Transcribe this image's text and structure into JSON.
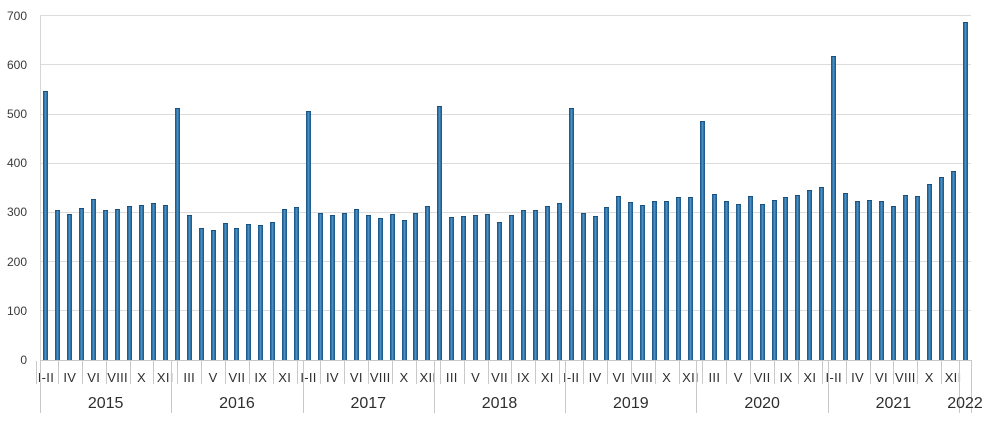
{
  "chart_data": {
    "type": "bar",
    "title": "",
    "xlabel": "",
    "ylabel": "",
    "ylim": [
      0,
      700
    ],
    "ytick_interval": 100,
    "yticks": [
      "0",
      "100",
      "200",
      "300",
      "400",
      "500",
      "600",
      "700"
    ],
    "grid": true,
    "legend": false,
    "bar_color": "#2e74a8",
    "months": [
      "I-II",
      "III",
      "IV",
      "V",
      "VI",
      "VII",
      "VIII",
      "IX",
      "X",
      "XI",
      "XII"
    ],
    "series": [
      {
        "year": "2015",
        "values": [
          547,
          304,
          297,
          308,
          327,
          304,
          306,
          312,
          316,
          320,
          316
        ]
      },
      {
        "year": "2016",
        "values": [
          513,
          294,
          269,
          264,
          278,
          269,
          277,
          275,
          281,
          306,
          310
        ]
      },
      {
        "year": "2017",
        "values": [
          506,
          299,
          294,
          298,
          306,
          294,
          289,
          297,
          284,
          299,
          313
        ]
      },
      {
        "year": "2018",
        "values": [
          516,
          290,
          293,
          295,
          297,
          281,
          295,
          304,
          304,
          314,
          319
        ]
      },
      {
        "year": "2019",
        "values": [
          512,
          299,
          293,
          310,
          333,
          322,
          315,
          323,
          324,
          332,
          331
        ]
      },
      {
        "year": "2020",
        "values": [
          486,
          338,
          323,
          317,
          333,
          318,
          326,
          331,
          335,
          346,
          352
        ]
      },
      {
        "year": "2021",
        "values": [
          618,
          340,
          323,
          326,
          324,
          313,
          336,
          333,
          358,
          371,
          384
        ]
      },
      {
        "year": "2022",
        "values": [
          687
        ]
      }
    ],
    "label_pattern": "every second bar labeled, starting with first"
  },
  "colors": {
    "bar_edge": "#1d5887",
    "bar_mid": "#4e96ca",
    "grid": "#dcdcdc",
    "axis": "#c3c3c3",
    "text": "#2e2e2e"
  }
}
